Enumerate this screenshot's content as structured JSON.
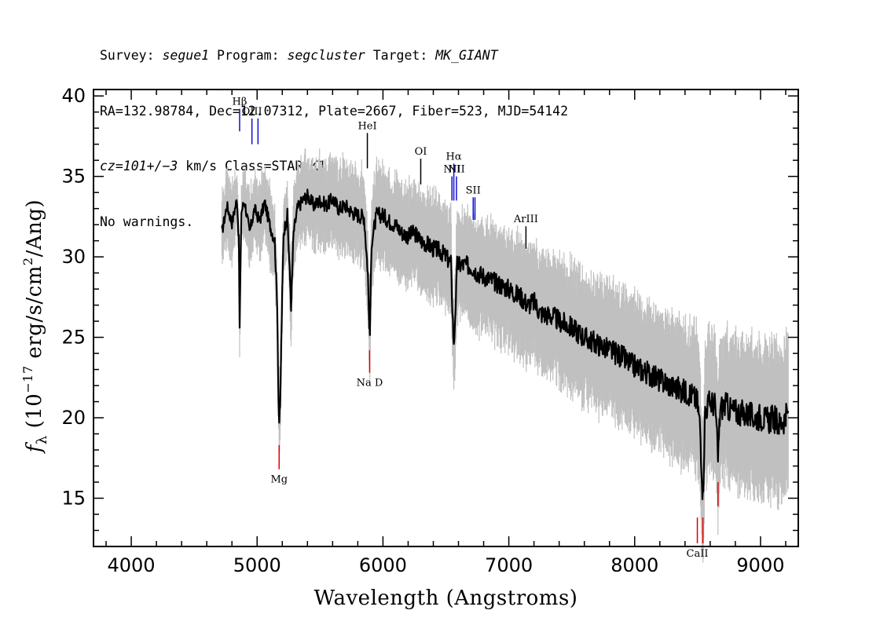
{
  "header": {
    "line1": {
      "survey_label": "Survey: ",
      "survey": "segue1",
      "program_label": " Program: ",
      "program": "segcluster",
      "target_label": " Target: ",
      "target": "MK_GIANT"
    },
    "line2": "RA=132.98784, Dec=12.07312, Plate=2667, Fiber=523, MJD=54142",
    "line3": {
      "cz": "cz=101+/−3",
      "rest": " km/s Class=STAR K1"
    },
    "line4": "No warnings."
  },
  "chart_data": {
    "type": "line",
    "xlabel": "Wavelength (Angstroms)",
    "ylabel": "fλ (10⁻¹⁷ erg/s/cm²/Ang)",
    "xlim": [
      3700,
      9300
    ],
    "ylim": [
      12,
      40.4
    ],
    "xticks": [
      4000,
      5000,
      6000,
      7000,
      8000,
      9000
    ],
    "yticks": [
      15,
      20,
      25,
      30,
      35,
      40
    ],
    "grid": false,
    "colors": {
      "flux": "#000000",
      "error_band": "#c0c0c0",
      "emission_marker": "#1010d0",
      "absorption_marker": "#e00000",
      "other_marker": "#000000"
    },
    "series": [
      {
        "role": "flux",
        "x": [
          4720,
          4760,
          4800,
          4840,
          4855,
          4861,
          4875,
          4900,
          4940,
          4980,
          5020,
          5060,
          5100,
          5140,
          5160,
          5170,
          5175,
          5183,
          5195,
          5210,
          5240,
          5270,
          5290,
          5320,
          5360,
          5400,
          5450,
          5500,
          5550,
          5600,
          5650,
          5700,
          5750,
          5800,
          5850,
          5880,
          5890,
          5896,
          5910,
          5950,
          6000,
          6050,
          6100,
          6150,
          6200,
          6250,
          6300,
          6350,
          6400,
          6450,
          6500,
          6540,
          6563,
          6590,
          6650,
          6700,
          6750,
          6800,
          6850,
          6900,
          6950,
          7000,
          7050,
          7100,
          7150,
          7200,
          7250,
          7300,
          7350,
          7400,
          7450,
          7500,
          7550,
          7600,
          7650,
          7700,
          7750,
          7800,
          7850,
          7900,
          7950,
          8000,
          8050,
          8100,
          8150,
          8200,
          8250,
          8300,
          8350,
          8400,
          8450,
          8498,
          8520,
          8542,
          8560,
          8600,
          8640,
          8662,
          8680,
          8720,
          8760,
          8800,
          8850,
          8900,
          8950,
          9000,
          9050,
          9100,
          9150,
          9200,
          9220
        ],
        "values": [
          31.5,
          33.2,
          32.1,
          33.6,
          31.0,
          25.5,
          32.8,
          33.5,
          31.5,
          33.0,
          32.2,
          33.4,
          32.0,
          31.0,
          27.0,
          21.0,
          19.8,
          20.5,
          26.0,
          31.5,
          32.6,
          27.0,
          31.5,
          33.0,
          33.5,
          33.8,
          33.2,
          33.5,
          33.2,
          33.6,
          33.0,
          33.2,
          32.8,
          32.6,
          32.5,
          29.0,
          26.0,
          25.2,
          31.0,
          32.6,
          32.6,
          32.2,
          32.0,
          31.5,
          31.3,
          31.5,
          31.0,
          30.8,
          30.5,
          30.4,
          30.0,
          29.6,
          24.3,
          29.5,
          29.5,
          29.4,
          29.0,
          28.8,
          28.6,
          28.4,
          28.2,
          28.0,
          27.7,
          27.5,
          27.0,
          27.2,
          26.5,
          26.4,
          26.3,
          26.0,
          25.8,
          25.6,
          25.3,
          25.0,
          24.8,
          24.6,
          24.4,
          24.2,
          24.0,
          23.8,
          23.4,
          23.2,
          23.0,
          22.8,
          22.6,
          22.3,
          22.2,
          21.9,
          21.8,
          21.6,
          21.5,
          21.0,
          19.4,
          15.0,
          20.5,
          21.0,
          20.8,
          17.5,
          20.6,
          20.8,
          20.5,
          20.4,
          20.3,
          20.2,
          20.0,
          20.1,
          19.8,
          20.0,
          19.6,
          20.0,
          20.2
        ]
      }
    ],
    "line_markers": [
      {
        "label": "Hβ",
        "x": 4861,
        "y1": 37.8,
        "y2": 39.2,
        "kind": "emission"
      },
      {
        "label": "OIII",
        "x": 4959,
        "y1": 37.0,
        "y2": 38.6,
        "kind": "emission"
      },
      {
        "label": "",
        "x": 5007,
        "y1": 37.0,
        "y2": 38.6,
        "kind": "emission"
      },
      {
        "label": "HeI",
        "x": 5876,
        "y1": 35.5,
        "y2": 37.7,
        "kind": "other"
      },
      {
        "label": "OI",
        "x": 6300,
        "y1": 34.5,
        "y2": 36.1,
        "kind": "other"
      },
      {
        "label": "NII",
        "x": 6548,
        "y1": 33.5,
        "y2": 35.0,
        "kind": "emission"
      },
      {
        "label": "Hα",
        "x": 6563,
        "y1": 33.5,
        "y2": 35.8,
        "kind": "emission"
      },
      {
        "label": "NII",
        "x": 6584,
        "y1": 33.5,
        "y2": 35.0,
        "kind": "emission"
      },
      {
        "label": "SII",
        "x": 6717,
        "y1": 32.3,
        "y2": 33.7,
        "kind": "emission"
      },
      {
        "label": "",
        "x": 6731,
        "y1": 32.3,
        "y2": 33.7,
        "kind": "emission"
      },
      {
        "label": "ArIII",
        "x": 7136,
        "y1": 30.5,
        "y2": 31.9,
        "kind": "other"
      },
      {
        "label": "Mg",
        "x": 5175,
        "y1": 16.8,
        "y2": 18.3,
        "kind": "absorption"
      },
      {
        "label": "Na D",
        "x": 5894,
        "y1": 22.8,
        "y2": 24.2,
        "kind": "absorption"
      },
      {
        "label": "CaII",
        "x": 8498,
        "y1": 12.2,
        "y2": 13.8,
        "kind": "absorption"
      },
      {
        "label": "",
        "x": 8542,
        "y1": 12.2,
        "y2": 13.8,
        "kind": "absorption"
      },
      {
        "label": "",
        "x": 8662,
        "y1": 14.5,
        "y2": 16.0,
        "kind": "absorption"
      }
    ]
  }
}
